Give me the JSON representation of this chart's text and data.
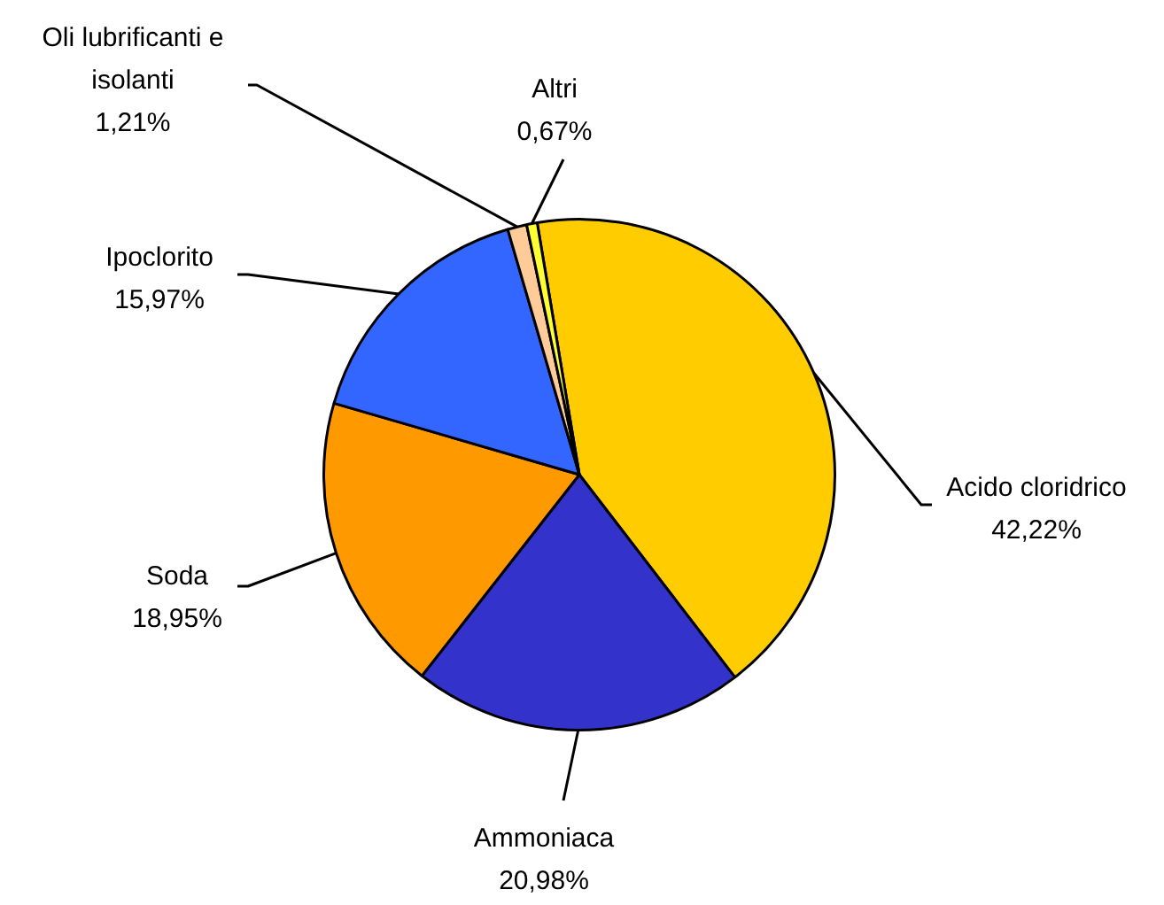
{
  "chart_data": {
    "type": "pie",
    "categories": [
      "Acido cloridrico",
      "Ammoniaca",
      "Soda",
      "Ipoclorito",
      "Oli lubrificanti e isolanti",
      "Altri"
    ],
    "values": [
      42.22,
      20.98,
      18.95,
      15.97,
      1.21,
      0.67
    ],
    "value_labels": [
      "42,22%",
      "20,98%",
      "18,95%",
      "15,97%",
      "1,21%",
      "0,67%"
    ],
    "colors": [
      "#ffcc00",
      "#3333cc",
      "#ff9900",
      "#3366ff",
      "#ffcc99",
      "#ffff33"
    ],
    "legend": false
  }
}
